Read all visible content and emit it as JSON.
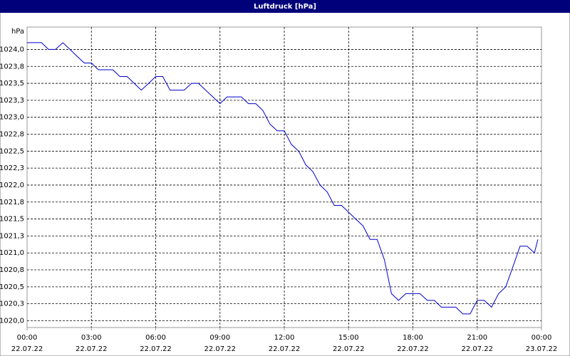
{
  "chart_data": {
    "type": "line",
    "title": "Luftdruck [hPa]",
    "y_unit": "hPa",
    "x": [
      0,
      0.33,
      0.67,
      1,
      1.33,
      1.67,
      2,
      2.33,
      2.67,
      3,
      3.33,
      3.67,
      4,
      4.33,
      4.67,
      5,
      5.33,
      5.67,
      6,
      6.33,
      6.67,
      7,
      7.33,
      7.67,
      8,
      8.33,
      8.67,
      9,
      9.33,
      9.67,
      10,
      10.33,
      10.67,
      11,
      11.33,
      11.67,
      12,
      12.33,
      12.67,
      13,
      13.33,
      13.67,
      14,
      14.33,
      14.67,
      15,
      15.33,
      15.67,
      16,
      16.33,
      16.67,
      17,
      17.33,
      17.67,
      18,
      18.33,
      18.67,
      19,
      19.33,
      19.67,
      20,
      20.33,
      20.67,
      21,
      21.33,
      21.67,
      22,
      22.33,
      22.67,
      23,
      23.33,
      23.67,
      23.83
    ],
    "series": [
      {
        "name": "Luftdruck",
        "color": "#0000cc",
        "values": [
          1024.1,
          1024.1,
          1024.1,
          1024.0,
          1024.0,
          1024.1,
          1024.0,
          1023.9,
          1023.8,
          1023.8,
          1023.7,
          1023.7,
          1023.7,
          1023.6,
          1023.6,
          1023.5,
          1023.4,
          1023.5,
          1023.6,
          1023.6,
          1023.4,
          1023.4,
          1023.4,
          1023.5,
          1023.5,
          1023.4,
          1023.3,
          1023.2,
          1023.3,
          1023.3,
          1023.3,
          1023.2,
          1023.2,
          1023.1,
          1022.9,
          1022.8,
          1022.8,
          1022.6,
          1022.5,
          1022.3,
          1022.2,
          1022.0,
          1021.9,
          1021.7,
          1021.7,
          1021.6,
          1021.5,
          1021.4,
          1021.2,
          1021.2,
          1020.9,
          1020.4,
          1020.3,
          1020.4,
          1020.4,
          1020.4,
          1020.3,
          1020.3,
          1020.2,
          1020.2,
          1020.2,
          1020.1,
          1020.1,
          1020.3,
          1020.3,
          1020.2,
          1020.4,
          1020.5,
          1020.8,
          1021.1,
          1021.1,
          1021.0,
          1021.2
        ]
      }
    ],
    "xlim": [
      0,
      24
    ],
    "xticks": [
      {
        "value": 0,
        "label": "00:00",
        "date": "22.07.22"
      },
      {
        "value": 3,
        "label": "03:00",
        "date": "22.07.22"
      },
      {
        "value": 6,
        "label": "06:00",
        "date": "22.07.22"
      },
      {
        "value": 9,
        "label": "09:00",
        "date": "22.07.22"
      },
      {
        "value": 12,
        "label": "12:00",
        "date": "22.07.22"
      },
      {
        "value": 15,
        "label": "15:00",
        "date": "22.07.22"
      },
      {
        "value": 18,
        "label": "18:00",
        "date": "22.07.22"
      },
      {
        "value": 21,
        "label": "21:00",
        "date": "22.07.22"
      },
      {
        "value": 24,
        "label": "00:00",
        "date": "23.07.22"
      }
    ],
    "ylim": [
      1019.9,
      1024.33
    ],
    "yticks": [
      {
        "value": 1020,
        "label": "1020,0"
      },
      {
        "value": 1020.25,
        "label": "1020,3"
      },
      {
        "value": 1020.5,
        "label": "1020,5"
      },
      {
        "value": 1020.75,
        "label": "1020,8"
      },
      {
        "value": 1021,
        "label": "1021,0"
      },
      {
        "value": 1021.25,
        "label": "1021,3"
      },
      {
        "value": 1021.5,
        "label": "1021,5"
      },
      {
        "value": 1021.75,
        "label": "1021,8"
      },
      {
        "value": 1022,
        "label": "1022,0"
      },
      {
        "value": 1022.25,
        "label": "1022,3"
      },
      {
        "value": 1022.5,
        "label": "1022,5"
      },
      {
        "value": 1022.75,
        "label": "1022,8"
      },
      {
        "value": 1023,
        "label": "1023,0"
      },
      {
        "value": 1023.25,
        "label": "1023,3"
      },
      {
        "value": 1023.5,
        "label": "1023,5"
      },
      {
        "value": 1023.75,
        "label": "1023,8"
      },
      {
        "value": 1024,
        "label": "1024,0"
      }
    ],
    "grid": true
  }
}
